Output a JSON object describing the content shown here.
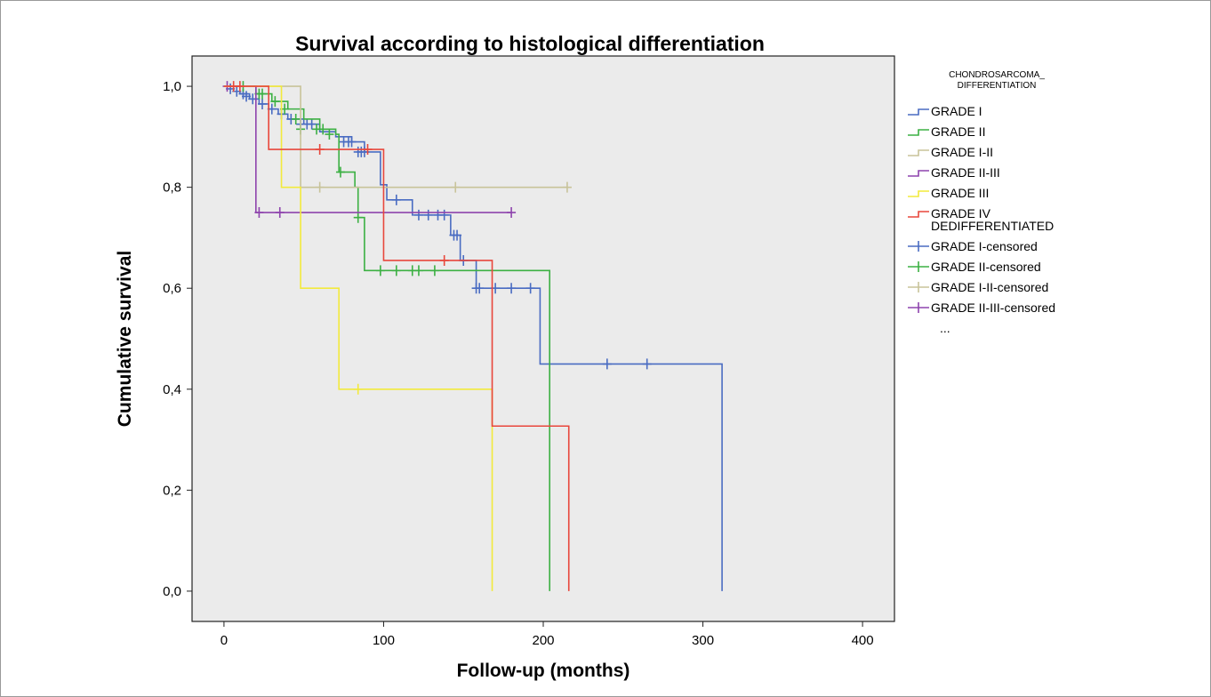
{
  "chart_data": {
    "type": "line",
    "subtype": "kaplan-meier step survival curves",
    "title": "Survival according to histological differentiation",
    "xlabel": "Follow-up (months)",
    "ylabel": "Cumulative survival",
    "xlim": [
      -20,
      420
    ],
    "ylim": [
      -0.06,
      1.06
    ],
    "x_ticks": [
      0,
      100,
      200,
      300,
      400
    ],
    "x_tick_labels": [
      "0",
      "100",
      "200",
      "300",
      "400"
    ],
    "y_ticks": [
      0,
      0.2,
      0.4,
      0.6,
      0.8,
      1.0
    ],
    "y_tick_labels": [
      "0,0",
      "0,2",
      "0,4",
      "0,6",
      "0,8",
      "1,0"
    ],
    "grid": false,
    "plot_background": "#ebebeb",
    "legend_position": "right",
    "legend_title": [
      "CHONDROSARCOMA_",
      "DIFFERENTIATION"
    ],
    "legend": [
      {
        "label": "GRADE I",
        "color": "#4a6cc2",
        "marker": "step"
      },
      {
        "label": "GRADE II",
        "color": "#3cb043",
        "marker": "step"
      },
      {
        "label": "GRADE I-II",
        "color": "#c8c39a",
        "marker": "step"
      },
      {
        "label": "GRADE II-III",
        "color": "#8e44ad",
        "marker": "step"
      },
      {
        "label": "GRADE III",
        "color": "#f2ea3c",
        "marker": "step"
      },
      {
        "label": "GRADE IV",
        "label_line2": "DEDIFFERENTIATED",
        "color": "#e8473c",
        "marker": "step"
      },
      {
        "label": "GRADE I-censored",
        "color": "#4a6cc2",
        "marker": "plus"
      },
      {
        "label": "GRADE II-censored",
        "color": "#3cb043",
        "marker": "plus"
      },
      {
        "label": "GRADE I-II-censored",
        "color": "#c8c39a",
        "marker": "plus"
      },
      {
        "label": "GRADE II-III-censored",
        "color": "#8e44ad",
        "marker": "plus"
      },
      {
        "label": "...",
        "color": "#000000",
        "marker": "none"
      }
    ],
    "series": [
      {
        "name": "GRADE I",
        "color": "#4a6cc2",
        "steps": [
          [
            0,
            1.0
          ],
          [
            6,
            0.99
          ],
          [
            10,
            0.985
          ],
          [
            16,
            0.975
          ],
          [
            22,
            0.965
          ],
          [
            28,
            0.955
          ],
          [
            34,
            0.945
          ],
          [
            40,
            0.935
          ],
          [
            50,
            0.925
          ],
          [
            60,
            0.91
          ],
          [
            70,
            0.9
          ],
          [
            80,
            0.89
          ],
          [
            88,
            0.87
          ],
          [
            98,
            0.805
          ],
          [
            102,
            0.775
          ],
          [
            118,
            0.745
          ],
          [
            142,
            0.705
          ],
          [
            148,
            0.655
          ],
          [
            158,
            0.6
          ],
          [
            198,
            0.45
          ],
          [
            312,
            0.45
          ],
          [
            312,
            0.0
          ]
        ],
        "censored": [
          [
            4,
            0.995
          ],
          [
            8,
            0.99
          ],
          [
            12,
            0.985
          ],
          [
            14,
            0.98
          ],
          [
            18,
            0.975
          ],
          [
            24,
            0.965
          ],
          [
            30,
            0.955
          ],
          [
            36,
            0.945
          ],
          [
            42,
            0.935
          ],
          [
            48,
            0.925
          ],
          [
            52,
            0.925
          ],
          [
            55,
            0.925
          ],
          [
            75,
            0.89
          ],
          [
            78,
            0.89
          ],
          [
            80,
            0.89
          ],
          [
            84,
            0.87
          ],
          [
            86,
            0.87
          ],
          [
            88,
            0.87
          ],
          [
            108,
            0.775
          ],
          [
            122,
            0.745
          ],
          [
            128,
            0.745
          ],
          [
            134,
            0.745
          ],
          [
            138,
            0.745
          ],
          [
            144,
            0.705
          ],
          [
            146,
            0.705
          ],
          [
            150,
            0.655
          ],
          [
            158,
            0.6
          ],
          [
            160,
            0.6
          ],
          [
            170,
            0.6
          ],
          [
            180,
            0.6
          ],
          [
            192,
            0.6
          ],
          [
            240,
            0.45
          ],
          [
            265,
            0.45
          ]
        ]
      },
      {
        "name": "GRADE II",
        "color": "#3cb043",
        "steps": [
          [
            0,
            1.0
          ],
          [
            20,
            0.985
          ],
          [
            30,
            0.97
          ],
          [
            40,
            0.955
          ],
          [
            50,
            0.935
          ],
          [
            60,
            0.915
          ],
          [
            70,
            0.905
          ],
          [
            72,
            0.83
          ],
          [
            82,
            0.8
          ],
          [
            84,
            0.74
          ],
          [
            88,
            0.635
          ],
          [
            204,
            0.635
          ],
          [
            204,
            0.0
          ]
        ],
        "censored": [
          [
            12,
            1.0
          ],
          [
            22,
            0.985
          ],
          [
            24,
            0.985
          ],
          [
            32,
            0.97
          ],
          [
            38,
            0.955
          ],
          [
            45,
            0.935
          ],
          [
            48,
            0.915
          ],
          [
            58,
            0.915
          ],
          [
            62,
            0.915
          ],
          [
            66,
            0.905
          ],
          [
            73,
            0.83
          ],
          [
            84,
            0.74
          ],
          [
            98,
            0.635
          ],
          [
            108,
            0.635
          ],
          [
            118,
            0.635
          ],
          [
            122,
            0.635
          ],
          [
            132,
            0.635
          ]
        ]
      },
      {
        "name": "GRADE I-II",
        "color": "#c8c39a",
        "steps": [
          [
            0,
            1.0
          ],
          [
            48,
            1.0
          ],
          [
            48,
            0.8
          ],
          [
            215,
            0.8
          ]
        ],
        "censored": [
          [
            60,
            0.8
          ],
          [
            145,
            0.8
          ],
          [
            215,
            0.8
          ]
        ]
      },
      {
        "name": "GRADE II-III",
        "color": "#8e44ad",
        "steps": [
          [
            0,
            1.0
          ],
          [
            20,
            1.0
          ],
          [
            20,
            0.75
          ],
          [
            180,
            0.75
          ]
        ],
        "censored": [
          [
            2,
            1.0
          ],
          [
            22,
            0.75
          ],
          [
            35,
            0.75
          ],
          [
            180,
            0.75
          ]
        ]
      },
      {
        "name": "GRADE III",
        "color": "#f2ea3c",
        "steps": [
          [
            0,
            1.0
          ],
          [
            36,
            1.0
          ],
          [
            36,
            0.8
          ],
          [
            48,
            0.8
          ],
          [
            48,
            0.6
          ],
          [
            72,
            0.6
          ],
          [
            72,
            0.4
          ],
          [
            168,
            0.4
          ],
          [
            168,
            0.0
          ]
        ],
        "censored": [
          [
            84,
            0.4
          ]
        ]
      },
      {
        "name": "GRADE IV DEDIFFERENTIATED",
        "color": "#e8473c",
        "steps": [
          [
            0,
            1.0
          ],
          [
            28,
            1.0
          ],
          [
            28,
            0.875
          ],
          [
            100,
            0.875
          ],
          [
            100,
            0.655
          ],
          [
            168,
            0.655
          ],
          [
            168,
            0.327
          ],
          [
            216,
            0.327
          ],
          [
            216,
            0.0
          ]
        ],
        "censored": [
          [
            6,
            1.0
          ],
          [
            10,
            1.0
          ],
          [
            60,
            0.875
          ],
          [
            90,
            0.875
          ],
          [
            138,
            0.655
          ]
        ]
      }
    ]
  }
}
